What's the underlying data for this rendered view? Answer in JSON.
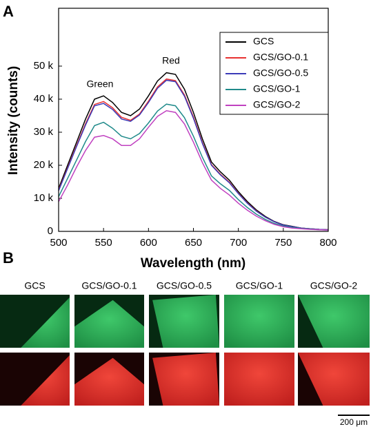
{
  "panel_a_label": "A",
  "chart_data": {
    "type": "line",
    "x_label": "Wavelength (nm)",
    "y_label": "Intensity (counts)",
    "annotations": [
      {
        "text": "Green",
        "color": "#2db36b"
      },
      {
        "text": "Red",
        "color": "#d9363e"
      }
    ],
    "x": [
      500,
      510,
      520,
      530,
      540,
      550,
      560,
      570,
      580,
      590,
      600,
      610,
      620,
      630,
      640,
      650,
      660,
      670,
      680,
      690,
      700,
      710,
      720,
      730,
      740,
      750,
      760,
      770,
      780,
      790,
      800
    ],
    "series": [
      {
        "name": "GCS",
        "color": "#000000",
        "values": [
          13000,
          20000,
          27000,
          34000,
          40000,
          41000,
          39000,
          36000,
          35000,
          37000,
          41000,
          45500,
          48000,
          47500,
          43000,
          36000,
          28000,
          21000,
          18000,
          15500,
          12000,
          9000,
          6500,
          4500,
          3000,
          2000,
          1500,
          1000,
          800,
          600,
          500
        ]
      },
      {
        "name": "GCS/GO-0.1",
        "color": "#e8302f",
        "values": [
          12500,
          19200,
          26000,
          32600,
          38400,
          39300,
          37400,
          34500,
          33600,
          35500,
          39400,
          43700,
          46100,
          45600,
          41300,
          34600,
          26900,
          20200,
          17300,
          14900,
          11500,
          8600,
          6200,
          4300,
          2900,
          1900,
          1400,
          1000,
          800,
          600,
          500
        ]
      },
      {
        "name": "GCS/GO-0.5",
        "color": "#3a3ab8",
        "values": [
          12300,
          19000,
          25700,
          32200,
          38000,
          38700,
          36900,
          34000,
          33300,
          35200,
          39000,
          43300,
          45700,
          45300,
          40900,
          34200,
          26600,
          20000,
          17100,
          14700,
          11400,
          8500,
          6100,
          4300,
          2900,
          1900,
          1400,
          1000,
          800,
          600,
          500
        ]
      },
      {
        "name": "GCS/GO-1",
        "color": "#1f8a8a",
        "values": [
          10500,
          16000,
          21600,
          27200,
          32000,
          33000,
          31200,
          28800,
          28000,
          29600,
          32800,
          36400,
          38500,
          38000,
          34400,
          28800,
          22400,
          16800,
          14400,
          12400,
          9600,
          7200,
          5200,
          3600,
          2400,
          1600,
          1200,
          900,
          700,
          500,
          400
        ]
      },
      {
        "name": "GCS/GO-2",
        "color": "#c040c0",
        "values": [
          9000,
          14000,
          19500,
          24500,
          28500,
          29000,
          28000,
          26000,
          26000,
          28000,
          31500,
          34800,
          36500,
          36000,
          32500,
          27000,
          20800,
          15500,
          13000,
          11000,
          8500,
          6400,
          4600,
          3200,
          2100,
          1400,
          1000,
          800,
          600,
          500,
          400
        ]
      }
    ],
    "xlim": [
      500,
      800
    ],
    "xticks": [
      500,
      550,
      600,
      650,
      700,
      750,
      800
    ],
    "ylim": [
      0,
      67500
    ],
    "yticks": [
      0,
      {
        "value": 10000,
        "label": "10 k"
      },
      {
        "value": 20000,
        "label": "20 k"
      },
      {
        "value": 30000,
        "label": "30 k"
      },
      {
        "value": 40000,
        "label": "40 k"
      },
      {
        "value": 50000,
        "label": "50 k"
      }
    ],
    "legend": "upper right"
  },
  "panel_b": {
    "label": "B",
    "columns": [
      "GCS",
      "GCS/GO-0.1",
      "GCS/GO-0.5",
      "GCS/GO-1",
      "GCS/GO-2"
    ],
    "scale_bar": "200 μm"
  }
}
